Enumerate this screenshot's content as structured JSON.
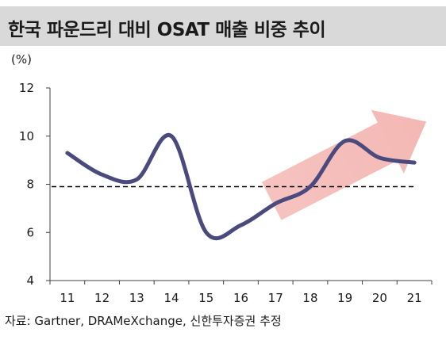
{
  "title": "한국 파운드리 대비 OSAT 매출 비중 추이",
  "source": "자료: Gartner, DRAMeXchange, 신한투자증권 추정",
  "colors": {
    "title_bg": "#d9d9d9",
    "line": "#4a4a7e",
    "arrow": "#f4b8b4",
    "reference_line": "#000000",
    "axis": "#404040"
  },
  "chart_data": {
    "type": "line",
    "title": "",
    "xlabel": "",
    "ylabel": "(%)",
    "categories": [
      "11",
      "12",
      "13",
      "14",
      "15",
      "16",
      "17",
      "18",
      "19",
      "20",
      "21"
    ],
    "ylim": [
      4,
      12
    ],
    "yticks": [
      4,
      6,
      8,
      10,
      12
    ],
    "series": [
      {
        "values": [
          9.3,
          8.4,
          8.2,
          10.0,
          6.0,
          6.3,
          7.2,
          7.9,
          9.8,
          9.1,
          8.9
        ]
      }
    ],
    "reference_line": {
      "value": 7.9,
      "style": "dashed"
    },
    "annotations": [
      {
        "type": "arrow",
        "direction": "up-right",
        "from_x": "17",
        "to_x": "21"
      }
    ],
    "grid": false,
    "legend": "none"
  }
}
